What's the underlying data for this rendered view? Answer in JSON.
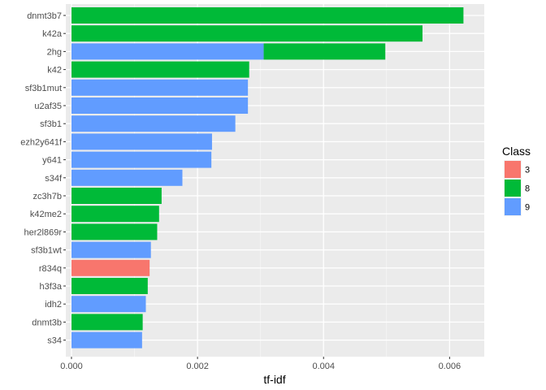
{
  "chart_data": {
    "type": "bar",
    "orientation": "horizontal",
    "stacked": true,
    "xlabel": "tf-idf",
    "ylabel": "",
    "xlim": [
      -9e-05,
      0.00655
    ],
    "xticks": [
      0.0,
      0.002,
      0.004,
      0.006
    ],
    "xtick_labels": [
      "0.000",
      "0.002",
      "0.004",
      "0.006"
    ],
    "grid": true,
    "legend": {
      "title": "Class",
      "position": "right",
      "entries": [
        {
          "name": "3",
          "color": "#F8766D"
        },
        {
          "name": "8",
          "color": "#00BA38"
        },
        {
          "name": "9",
          "color": "#619CFF"
        }
      ]
    },
    "categories": [
      "dnmt3b7",
      "k42a",
      "2hg",
      "k42",
      "sf3b1mut",
      "u2af35",
      "sf3b1",
      "ezh2y641f",
      "y641",
      "s34f",
      "zc3h7b",
      "k42me2",
      "her2l869r",
      "sf3b1wt",
      "r834q",
      "h3f3a",
      "idh2",
      "dnmt3b",
      "s34"
    ],
    "series": [
      {
        "name": "9",
        "color": "#619CFF",
        "values": [
          0,
          0,
          0.00305,
          0,
          0.0028,
          0.0028,
          0.0026,
          0.00223,
          0.00222,
          0.00176,
          0,
          0,
          0,
          0.00126,
          0,
          0,
          0.00118,
          0,
          0.00112
        ]
      },
      {
        "name": "8",
        "color": "#00BA38",
        "values": [
          0.00622,
          0.00557,
          0.00193,
          0.00282,
          0,
          0,
          0,
          0,
          0,
          0,
          0.00143,
          0.00139,
          0.00136,
          0,
          0,
          0.00121,
          0,
          0.00113,
          0
        ]
      },
      {
        "name": "3",
        "color": "#F8766D",
        "values": [
          0,
          0,
          0,
          0,
          0,
          0,
          0,
          0,
          0,
          0,
          0,
          0,
          0,
          0,
          0.00124,
          0,
          0,
          0,
          0
        ]
      }
    ]
  }
}
